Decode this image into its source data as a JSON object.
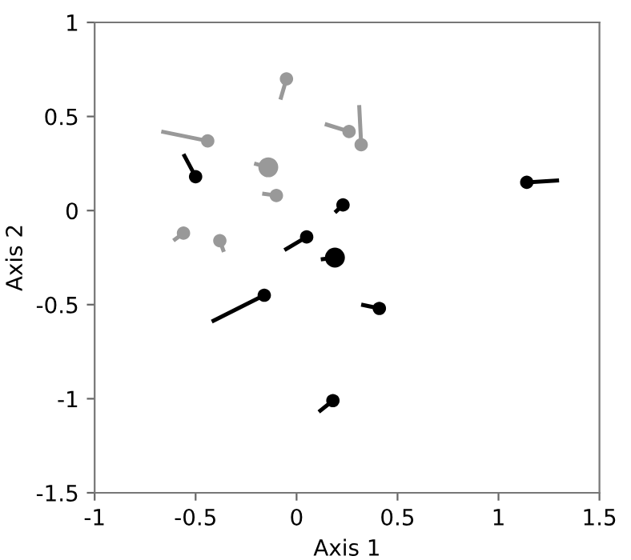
{
  "chart_data": {
    "type": "bubble",
    "xlabel": "Axis 1",
    "ylabel": "Axis 2",
    "xlim": [
      -1,
      1.5
    ],
    "xticks": [
      -1,
      -0.5,
      0,
      0.5,
      1,
      1.5
    ],
    "ylim": [
      -1.5,
      1
    ],
    "yticks": [
      -1.5,
      -1,
      -0.5,
      0,
      0.5,
      1
    ],
    "grid": false,
    "series": [
      {
        "type": "line",
        "color": "#999999",
        "x": [
          -0.44,
          -0.67,
          null,
          -0.05,
          -0.08,
          null,
          0.26,
          0.14,
          null,
          0.32,
          0.31,
          null,
          -0.14,
          -0.21,
          null,
          -0.1,
          -0.17,
          null,
          -0.56,
          -0.61,
          null,
          -0.38,
          -0.36
        ],
        "values": [
          0.37,
          0.42,
          null,
          0.7,
          0.59,
          null,
          0.42,
          0.46,
          null,
          0.35,
          0.56,
          null,
          0.23,
          0.25,
          null,
          0.08,
          0.09,
          null,
          -0.12,
          -0.16,
          null,
          -0.16,
          -0.22
        ]
      },
      {
        "type": "line",
        "color": "#000000",
        "x": [
          -0.5,
          -0.56,
          null,
          0.23,
          0.19,
          null,
          0.05,
          -0.06,
          null,
          0.19,
          0.12,
          null,
          -0.16,
          -0.42,
          null,
          0.41,
          0.32,
          null,
          0.18,
          0.11,
          null,
          1.14,
          1.3
        ],
        "values": [
          0.18,
          0.3,
          null,
          0.03,
          -0.01,
          null,
          -0.14,
          -0.21,
          null,
          -0.25,
          -0.26,
          null,
          -0.45,
          -0.59,
          null,
          -0.52,
          -0.5,
          null,
          -1.01,
          -1.07,
          null,
          0.15,
          0.16
        ]
      },
      {
        "color": "#999999",
        "x": [
          -0.44,
          -0.05,
          0.26,
          0.32,
          -0.14,
          -0.1,
          -0.56,
          -0.38
        ],
        "values": [
          0.37,
          0.7,
          0.42,
          0.35,
          0.23,
          0.08,
          -0.12,
          -0.16
        ],
        "sizes": [
          0.45,
          0.45,
          0.45,
          0.45,
          1,
          0.45,
          0.45,
          0.45
        ]
      },
      {
        "color": "#000000",
        "x": [
          -0.5,
          0.23,
          0.05,
          0.19,
          -0.16,
          0.41,
          0.18,
          1.14
        ],
        "values": [
          0.18,
          0.03,
          -0.14,
          -0.25,
          -0.45,
          -0.52,
          -1.01,
          0.15
        ],
        "sizes": [
          0.45,
          0.45,
          0.45,
          1,
          0.45,
          0.45,
          0.45,
          0.45
        ]
      }
    ]
  }
}
